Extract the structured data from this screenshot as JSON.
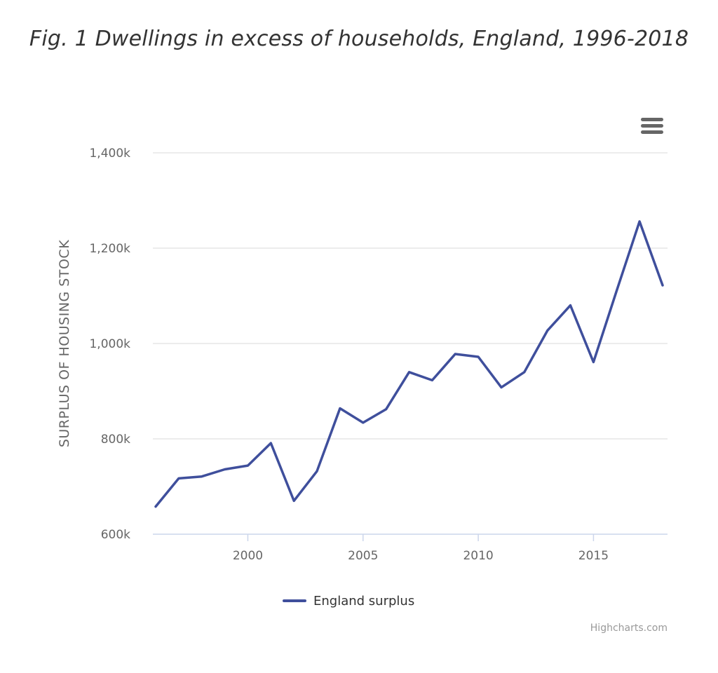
{
  "figure": {
    "title": "Fig. 1 Dwellings in excess of households, England, 1996-2018"
  },
  "toolbar": {
    "menu_icon": "hamburger-menu-icon"
  },
  "credits": {
    "text": "Highcharts.com"
  },
  "chart_data": {
    "type": "line",
    "title": "",
    "xlabel": "",
    "ylabel": "SURPLUS OF HOUSING STOCK",
    "x": [
      1996,
      1997,
      1998,
      1999,
      2000,
      2001,
      2002,
      2003,
      2004,
      2005,
      2006,
      2007,
      2008,
      2009,
      2010,
      2011,
      2012,
      2013,
      2014,
      2015,
      2016,
      2017,
      2018
    ],
    "series": [
      {
        "name": "England surplus",
        "color": "#3f4f9c",
        "values": [
          658000,
          717000,
          721000,
          736000,
          744000,
          791000,
          670000,
          732000,
          864000,
          834000,
          862000,
          940000,
          923000,
          978000,
          972000,
          908000,
          940000,
          1027000,
          1080000,
          961000,
          1110000,
          1256000,
          1122000
        ]
      }
    ],
    "xlim": [
      1996,
      2018
    ],
    "ylim": [
      600000,
      1400000
    ],
    "x_ticks": [
      2000,
      2005,
      2010,
      2015
    ],
    "x_tick_labels": [
      "2000",
      "2005",
      "2010",
      "2015"
    ],
    "y_ticks": [
      600000,
      800000,
      1000000,
      1200000,
      1400000
    ],
    "y_tick_labels": [
      "600k",
      "800k",
      "1,000k",
      "1,200k",
      "1,400k"
    ],
    "grid": true,
    "legend": "bottom-center"
  }
}
